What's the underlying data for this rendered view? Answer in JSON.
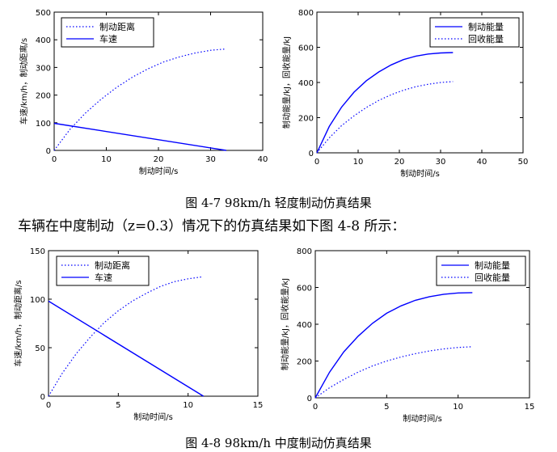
{
  "text": {
    "caption1": "图 4-7 98km/h 轻度制动仿真结果",
    "paragraph": "车辆在中度制动（z=0.3）情况下的仿真结果如下图 4-8 所示：",
    "caption2": "图 4-8 98km/h 中度制动仿真结果"
  },
  "chart_data": [
    {
      "id": "c1",
      "type": "line",
      "xlabel": "制动时间/s",
      "ylabel": "车速/km/h，制动距离/s",
      "xlim": [
        0,
        40
      ],
      "ylim": [
        0,
        500
      ],
      "xticks": [
        0,
        10,
        20,
        30,
        40
      ],
      "yticks": [
        0,
        100,
        200,
        300,
        400,
        500
      ],
      "legend_position": "top-left",
      "series": [
        {
          "name": "制动距离",
          "style": "dotted",
          "color": "#0000ff",
          "x": [
            0,
            3,
            6,
            9,
            12,
            15,
            18,
            21,
            24,
            27,
            30,
            33
          ],
          "y": [
            0,
            75,
            135,
            185,
            228,
            265,
            295,
            320,
            338,
            352,
            362,
            367
          ]
        },
        {
          "name": "车速",
          "style": "solid",
          "color": "#0000ff",
          "x": [
            0,
            33
          ],
          "y": [
            98,
            0
          ]
        }
      ]
    },
    {
      "id": "c2",
      "type": "line",
      "xlabel": "制动时间/s",
      "ylabel": "制动能量/kJ，回收能量/kJ",
      "xlim": [
        0,
        50
      ],
      "ylim": [
        0,
        800
      ],
      "xticks": [
        0,
        10,
        20,
        30,
        40,
        50
      ],
      "yticks": [
        0,
        200,
        400,
        600,
        800
      ],
      "legend_position": "top-right",
      "series": [
        {
          "name": "制动能量",
          "style": "solid",
          "color": "#0000ff",
          "x": [
            0,
            3,
            6,
            9,
            12,
            15,
            18,
            21,
            24,
            27,
            30,
            33
          ],
          "y": [
            0,
            150,
            260,
            345,
            410,
            460,
            500,
            530,
            550,
            562,
            568,
            570
          ]
        },
        {
          "name": "回收能量",
          "style": "dotted",
          "color": "#0000ff",
          "x": [
            0,
            3,
            6,
            9,
            12,
            15,
            18,
            21,
            24,
            27,
            30,
            33
          ],
          "y": [
            0,
            85,
            155,
            210,
            258,
            298,
            330,
            356,
            376,
            390,
            400,
            405
          ]
        }
      ]
    },
    {
      "id": "c3",
      "type": "line",
      "xlabel": "制动时间/s",
      "ylabel": "车速/km/h，制动距离/s",
      "xlim": [
        0,
        15
      ],
      "ylim": [
        0,
        150
      ],
      "xticks": [
        0,
        5,
        10,
        15
      ],
      "yticks": [
        0,
        50,
        100,
        150
      ],
      "legend_position": "top-left",
      "series": [
        {
          "name": "制动距离",
          "style": "dotted",
          "color": "#0000ff",
          "x": [
            0,
            1,
            2,
            3,
            4,
            5,
            6,
            7,
            8,
            9,
            10,
            11
          ],
          "y": [
            0,
            24,
            44,
            61,
            76,
            88,
            98,
            106,
            113,
            118,
            121,
            123
          ]
        },
        {
          "name": "车速",
          "style": "solid",
          "color": "#0000ff",
          "x": [
            0,
            11.1
          ],
          "y": [
            98,
            0
          ]
        }
      ]
    },
    {
      "id": "c4",
      "type": "line",
      "xlabel": "制动时间/s",
      "ylabel": "制动能量/kJ，回收能量/kJ",
      "xlim": [
        0,
        15
      ],
      "ylim": [
        0,
        800
      ],
      "xticks": [
        0,
        5,
        10,
        15
      ],
      "yticks": [
        0,
        200,
        400,
        600,
        800
      ],
      "legend_position": "top-right",
      "series": [
        {
          "name": "制动能量",
          "style": "solid",
          "color": "#0000ff",
          "x": [
            0,
            1,
            2,
            3,
            4,
            5,
            6,
            7,
            8,
            9,
            10,
            11
          ],
          "y": [
            0,
            140,
            250,
            335,
            405,
            460,
            500,
            530,
            550,
            563,
            570,
            572
          ]
        },
        {
          "name": "回收能量",
          "style": "dotted",
          "color": "#0000ff",
          "x": [
            0,
            1,
            2,
            3,
            4,
            5,
            6,
            7,
            8,
            9,
            10,
            11
          ],
          "y": [
            0,
            55,
            100,
            140,
            173,
            200,
            222,
            240,
            255,
            266,
            274,
            278
          ]
        }
      ]
    }
  ]
}
